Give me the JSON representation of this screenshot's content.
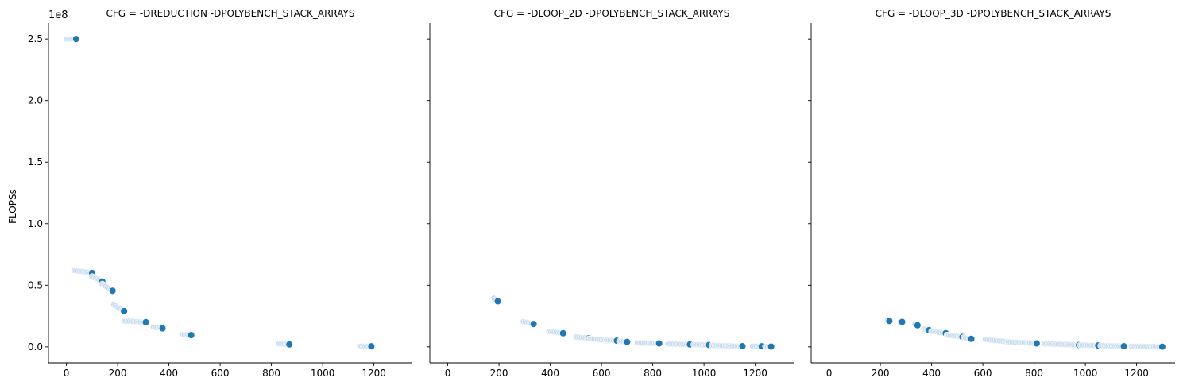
{
  "chart_data": {
    "type": "scatter",
    "ylabel": "FLOPSs",
    "y_offset_label": "1e8",
    "xlim": [
      -70,
      1350
    ],
    "ylim": [
      -13000000,
      263000000
    ],
    "x_ticks": [
      0,
      200,
      400,
      600,
      800,
      1000,
      1200
    ],
    "y_ticks": [
      0,
      50000000,
      100000000,
      150000000,
      200000000,
      250000000
    ],
    "y_tick_labels": [
      "0.0",
      "0.5",
      "1.0",
      "1.5",
      "2.0",
      "2.5"
    ],
    "grid": false,
    "legend": "none",
    "colors": {
      "highlight": "#1f77b4",
      "trail": "#c6dbef"
    },
    "panels": [
      {
        "title": "CFG = -DREDUCTION  -DPOLYBENCH_STACK_ARRAYS",
        "clusters": [
          {
            "x": [
              0,
              38
            ],
            "y": [
              250000000,
              250000000
            ]
          },
          {
            "x": [
              30,
              100
            ],
            "y": [
              62000000,
              60000000
            ]
          },
          {
            "x": [
              100,
              140
            ],
            "y": [
              57000000,
              53000000
            ]
          },
          {
            "x": [
              140,
              180
            ],
            "y": [
              51000000,
              45500000
            ]
          },
          {
            "x": [
              185,
              225
            ],
            "y": [
              34000000,
              29000000
            ]
          },
          {
            "x": [
              225,
              310
            ],
            "y": [
              21000000,
              20000000
            ]
          },
          {
            "x": [
              340,
              375
            ],
            "y": [
              16000000,
              15000000
            ]
          },
          {
            "x": [
              455,
              487
            ],
            "y": [
              10000000,
              9500000
            ]
          },
          {
            "x": [
              830,
              870
            ],
            "y": [
              2500000,
              2000000
            ]
          },
          {
            "x": [
              1145,
              1190
            ],
            "y": [
              500000,
              400000
            ]
          }
        ]
      },
      {
        "title": "CFG = -DLOOP_2D  -DPOLYBENCH_STACK_ARRAYS",
        "clusters": [
          {
            "x": [
              180,
              195
            ],
            "y": [
              39500000,
              37000000
            ]
          },
          {
            "x": [
              295,
              335
            ],
            "y": [
              20500000,
              18500000
            ]
          },
          {
            "x": [
              395,
              450
            ],
            "y": [
              12500000,
              11000000
            ]
          },
          {
            "x": [
              500,
              550
            ],
            "y": [
              8000000,
              7000000
            ]
          },
          {
            "x": [
              550,
              620
            ],
            "y": [
              6500000,
              5500000
            ]
          },
          {
            "x": [
              620,
              660
            ],
            "y": [
              5500000,
              5000000
            ]
          },
          {
            "x": [
              670,
              700
            ],
            "y": [
              4500000,
              4000000
            ]
          },
          {
            "x": [
              740,
              825
            ],
            "y": [
              3200000,
              2800000
            ]
          },
          {
            "x": [
              860,
              945
            ],
            "y": [
              2400000,
              2000000
            ]
          },
          {
            "x": [
              960,
              1020
            ],
            "y": [
              1800000,
              1500000
            ]
          },
          {
            "x": [
              1030,
              1150
            ],
            "y": [
              1200000,
              500000
            ]
          },
          {
            "x": [
              1190,
              1225
            ],
            "y": [
              600000,
              400000
            ]
          },
          {
            "x": [
              1240,
              1262
            ],
            "y": [
              300000,
              200000
            ]
          }
        ]
      },
      {
        "title": "CFG = -DLOOP_3D  -DPOLYBENCH_STACK_ARRAYS",
        "clusters": [
          {
            "x": [
              228,
              235
            ],
            "y": [
              21500000,
              21000000
            ]
          },
          {
            "x": [
              278,
              285
            ],
            "y": [
              20500000,
              20200000
            ]
          },
          {
            "x": [
              335,
              345
            ],
            "y": [
              18500000,
              17500000
            ]
          },
          {
            "x": [
              370,
              390
            ],
            "y": [
              14500000,
              13500000
            ]
          },
          {
            "x": [
              400,
              455
            ],
            "y": [
              12500000,
              11000000
            ]
          },
          {
            "x": [
              460,
              520
            ],
            "y": [
              9500000,
              8000000
            ]
          },
          {
            "x": [
              525,
              555
            ],
            "y": [
              7500000,
              6500000
            ]
          },
          {
            "x": [
              610,
              700
            ],
            "y": [
              6000000,
              4000000
            ]
          },
          {
            "x": [
              700,
              810
            ],
            "y": [
              4000000,
              2800000
            ]
          },
          {
            "x": [
              840,
              975
            ],
            "y": [
              2500000,
              1500000
            ]
          },
          {
            "x": [
              980,
              1050
            ],
            "y": [
              1400000,
              1100000
            ]
          },
          {
            "x": [
              1060,
              1150
            ],
            "y": [
              1000000,
              500000
            ]
          },
          {
            "x": [
              1180,
              1300
            ],
            "y": [
              500000,
              100000
            ]
          }
        ]
      }
    ]
  }
}
